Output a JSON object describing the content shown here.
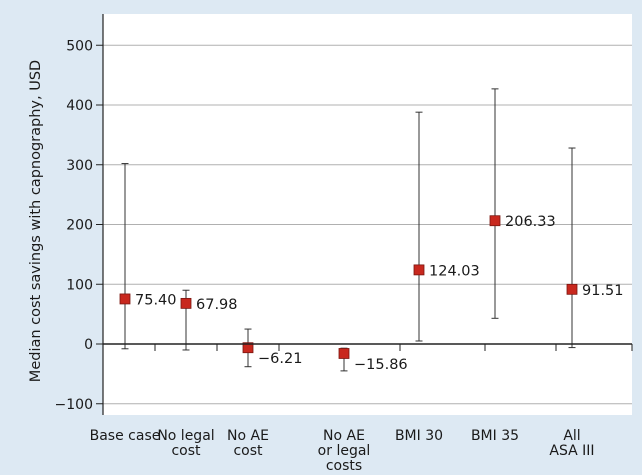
{
  "chart_data": {
    "type": "scatter",
    "subtype": "point-with-range",
    "title": "",
    "xlabel": "",
    "ylabel": "Median cost savings with capnography, USD",
    "ylim": [
      -120,
      540
    ],
    "yticks": [
      -100,
      0,
      100,
      200,
      300,
      400,
      500
    ],
    "ytick_labels": [
      "−100",
      "0",
      "100",
      "200",
      "300",
      "400",
      "500"
    ],
    "grid": "horizontal",
    "marker_color": "#c8281e",
    "categories": [
      {
        "label_lines": [
          "Base case"
        ]
      },
      {
        "label_lines": [
          "No legal",
          "cost"
        ]
      },
      {
        "label_lines": [
          "No AE",
          "cost"
        ]
      },
      {
        "label_lines": [
          "No AE",
          "or legal",
          "costs"
        ]
      },
      {
        "label_lines": [
          "BMI 30"
        ]
      },
      {
        "label_lines": [
          "BMI 35"
        ]
      },
      {
        "label_lines": [
          "All",
          "ASA III"
        ]
      }
    ],
    "points": [
      {
        "value": 75.4,
        "label": "75.40",
        "low": -8,
        "high": 302
      },
      {
        "value": 67.98,
        "label": "67.98",
        "low": -10,
        "high": 90
      },
      {
        "value": -6.21,
        "label": "−6.21",
        "low": -38,
        "high": 25
      },
      {
        "value": -15.86,
        "label": "−15.86",
        "low": -45,
        "high": -7
      },
      {
        "value": 124.03,
        "label": "124.03",
        "low": 5,
        "high": 388
      },
      {
        "value": 206.33,
        "label": "206.33",
        "low": 43,
        "high": 427
      },
      {
        "value": 91.51,
        "label": "91.51",
        "low": -6,
        "high": 328
      }
    ]
  }
}
